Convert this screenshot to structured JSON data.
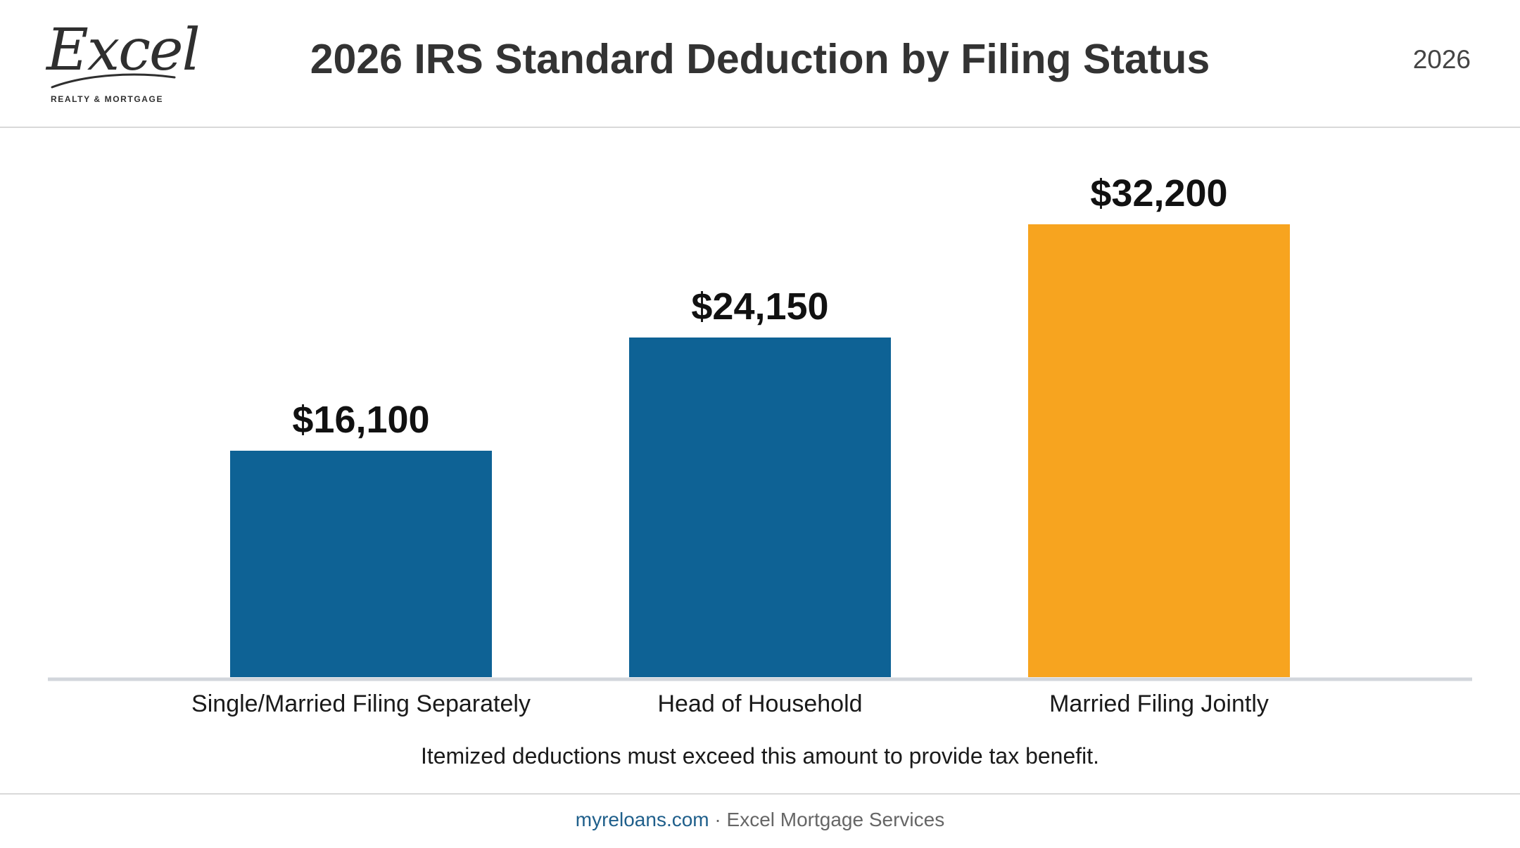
{
  "header": {
    "logo_text": "Excel",
    "logo_subtext": "REALTY & MORTGAGE",
    "title": "2026 IRS Standard Deduction by Filing Status",
    "year": "2026"
  },
  "chart_data": {
    "type": "bar",
    "title": "2026 IRS Standard Deduction by Filing Status",
    "categories": [
      "Single/Married Filing Separately",
      "Head of Household",
      "Married Filing Jointly"
    ],
    "values": [
      16100,
      24150,
      32200
    ],
    "value_labels": [
      "$16,100",
      "$24,150",
      "$32,200"
    ],
    "colors": [
      "#0e6295",
      "#0e6295",
      "#f7a41f"
    ],
    "ylim": [
      0,
      40000
    ],
    "grid": false,
    "note": "Itemized deductions must exceed this amount to provide tax benefit."
  },
  "footer": {
    "link": "myreloans.com",
    "separator": " · ",
    "company": "Excel Mortgage Services"
  },
  "colors": {
    "accent_blue": "#0e6295",
    "accent_orange": "#f7a41f",
    "axis": "#d2d6dc"
  }
}
